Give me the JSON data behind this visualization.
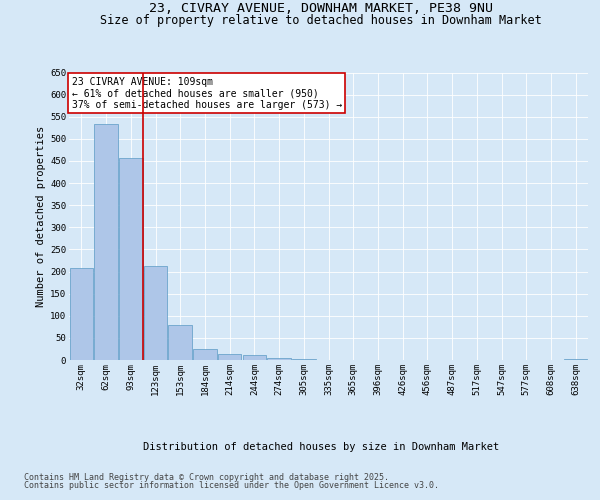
{
  "title_line1": "23, CIVRAY AVENUE, DOWNHAM MARKET, PE38 9NU",
  "title_line2": "Size of property relative to detached houses in Downham Market",
  "xlabel": "Distribution of detached houses by size in Downham Market",
  "ylabel": "Number of detached properties",
  "categories": [
    "32sqm",
    "62sqm",
    "93sqm",
    "123sqm",
    "153sqm",
    "184sqm",
    "214sqm",
    "244sqm",
    "274sqm",
    "305sqm",
    "335sqm",
    "365sqm",
    "396sqm",
    "426sqm",
    "456sqm",
    "487sqm",
    "517sqm",
    "547sqm",
    "577sqm",
    "608sqm",
    "638sqm"
  ],
  "values": [
    207,
    533,
    457,
    213,
    80,
    25,
    13,
    11,
    5,
    2,
    1,
    1,
    0,
    0,
    0,
    0,
    0,
    0,
    0,
    0,
    2
  ],
  "bar_color": "#aec6e8",
  "bar_edge_color": "#5a9bc5",
  "reference_line_x": 2.5,
  "reference_line_label": "23 CIVRAY AVENUE: 109sqm",
  "annotation_line2": "← 61% of detached houses are smaller (950)",
  "annotation_line3": "37% of semi-detached houses are larger (573) →",
  "annotation_box_color": "#ffffff",
  "annotation_box_edge_color": "#cc0000",
  "vline_color": "#cc0000",
  "background_color": "#d6e8f7",
  "plot_bg_color": "#d6e8f7",
  "ylim": [
    0,
    650
  ],
  "yticks": [
    0,
    50,
    100,
    150,
    200,
    250,
    300,
    350,
    400,
    450,
    500,
    550,
    600,
    650
  ],
  "footer_line1": "Contains HM Land Registry data © Crown copyright and database right 2025.",
  "footer_line2": "Contains public sector information licensed under the Open Government Licence v3.0.",
  "title_fontsize": 9.5,
  "subtitle_fontsize": 8.5,
  "axis_label_fontsize": 7.5,
  "tick_fontsize": 6.5,
  "annotation_fontsize": 7,
  "footer_fontsize": 6
}
